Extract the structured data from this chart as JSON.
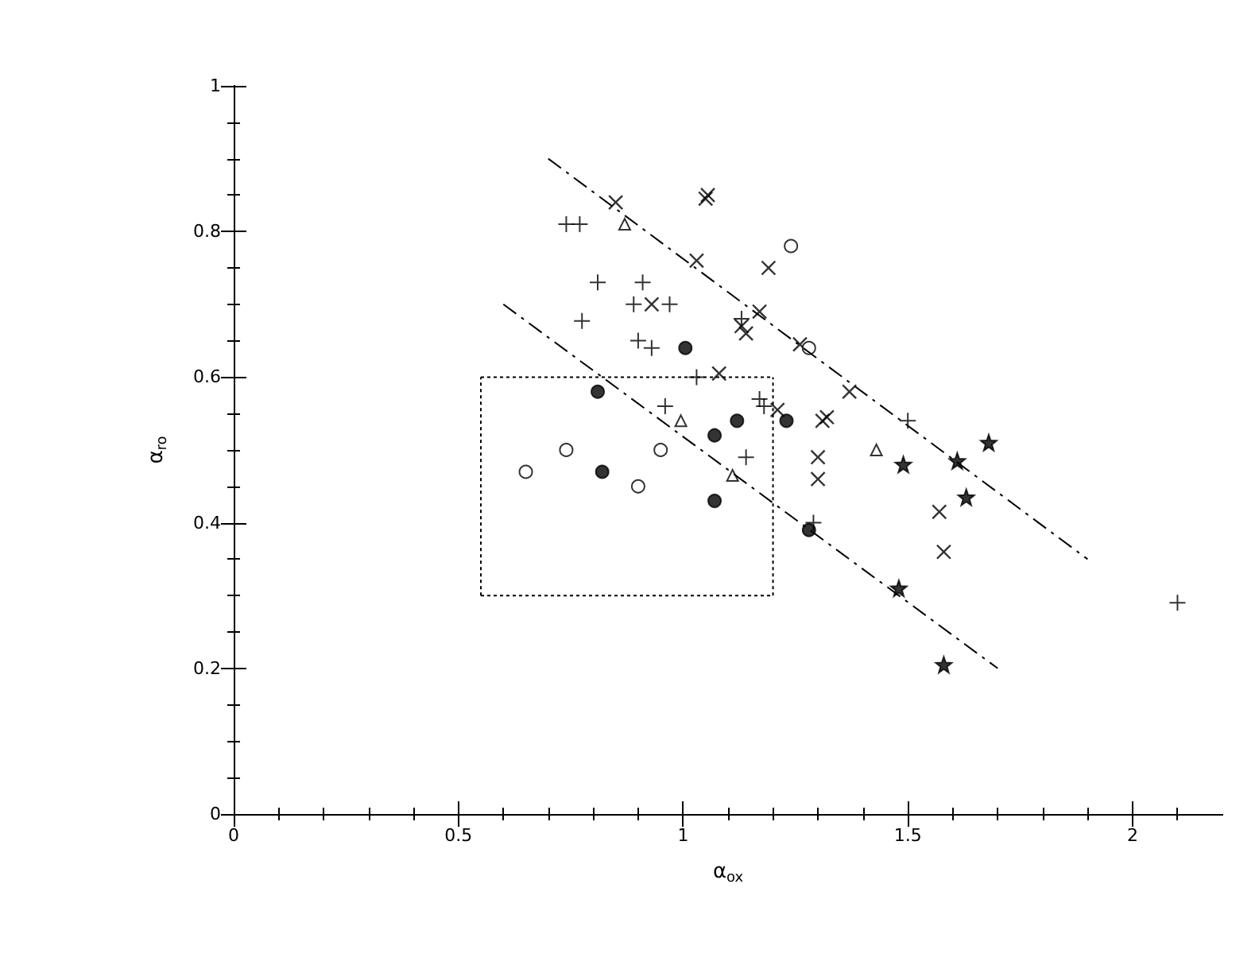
{
  "chart_data": {
    "type": "scatter",
    "xlabel": "α$_{ox}$",
    "ylabel": "α$_{ro}$",
    "xlim": [
      0,
      2.2
    ],
    "ylim": [
      0,
      1
    ],
    "xticks": [
      0,
      0.5,
      1,
      1.5,
      2
    ],
    "yticks": [
      0,
      0.2,
      0.4,
      0.6,
      0.8,
      1
    ],
    "grid": false,
    "series": [
      {
        "marker": "plus",
        "color": "#000000",
        "x": [
          0.74,
          0.77,
          0.81,
          0.775,
          0.91,
          0.89,
          0.97,
          0.9,
          0.93,
          1.03,
          0.96,
          1.17,
          1.18,
          1.14,
          1.13,
          1.5,
          1.29,
          2.1
        ],
        "values": [
          0.81,
          0.81,
          0.73,
          0.677,
          0.73,
          0.7,
          0.7,
          0.65,
          0.64,
          0.6,
          0.56,
          0.57,
          0.56,
          0.49,
          0.68,
          0.54,
          0.4,
          0.29
        ]
      },
      {
        "marker": "cross",
        "color": "#000000",
        "x": [
          0.85,
          1.05,
          1.055,
          1.03,
          1.19,
          0.93,
          1.17,
          1.14,
          1.13,
          1.26,
          1.08,
          1.37,
          1.21,
          1.31,
          1.32,
          1.3,
          1.3,
          1.57,
          1.58
        ],
        "values": [
          0.84,
          0.845,
          0.85,
          0.76,
          0.75,
          0.7,
          0.69,
          0.66,
          0.67,
          0.645,
          0.605,
          0.58,
          0.555,
          0.54,
          0.545,
          0.49,
          0.46,
          0.415,
          0.36
        ]
      },
      {
        "marker": "circle",
        "color": "#ffffff",
        "x": [
          1.24,
          1.28,
          0.65,
          0.74,
          0.95,
          0.9
        ],
        "values": [
          0.78,
          0.64,
          0.47,
          0.5,
          0.5,
          0.45
        ]
      },
      {
        "marker": "circle",
        "color": "#000000",
        "x": [
          1.005,
          0.81,
          0.82,
          1.07,
          1.12,
          1.23,
          1.07,
          1.28
        ],
        "values": [
          0.64,
          0.58,
          0.47,
          0.52,
          0.54,
          0.54,
          0.43,
          0.39
        ]
      },
      {
        "marker": "triangle",
        "color": "#000000",
        "x": [
          0.995,
          1.11,
          0.87,
          1.43
        ],
        "values": [
          0.54,
          0.465,
          0.81,
          0.5
        ]
      },
      {
        "marker": "star",
        "color": "#000000",
        "x": [
          1.68,
          1.49,
          1.61,
          1.63,
          1.48,
          1.58
        ],
        "values": [
          0.51,
          0.48,
          0.485,
          0.435,
          0.31,
          0.205
        ]
      },
      {
        "type": "line",
        "line_style": "dashed",
        "marker": "none",
        "color": "#000000",
        "x": [
          0.7,
          1.9
        ],
        "values": [
          0.9,
          0.35
        ]
      },
      {
        "type": "line",
        "line_style": "dashed",
        "marker": "none",
        "color": "#000000",
        "x": [
          0.6,
          1.7
        ],
        "values": [
          0.7,
          0.2
        ]
      },
      {
        "type": "line",
        "line_style": "dotted",
        "marker": "none",
        "color": "#000000",
        "x": [
          0.55,
          1.2
        ],
        "values": [
          0.3,
          0.3
        ]
      },
      {
        "type": "line",
        "line_style": "dotted",
        "marker": "none",
        "color": "#000000",
        "x": [
          0.55,
          1.2
        ],
        "values": [
          0.6,
          0.6
        ]
      },
      {
        "type": "line",
        "line_style": "dotted",
        "marker": "none",
        "color": "#000000",
        "x": [
          0.55,
          0.55
        ],
        "values": [
          0.3,
          0.6
        ]
      },
      {
        "type": "line",
        "line_style": "dotted",
        "marker": "none",
        "color": "#000000",
        "x": [
          1.2,
          1.2
        ],
        "values": [
          0.3,
          0.6
        ]
      }
    ]
  }
}
